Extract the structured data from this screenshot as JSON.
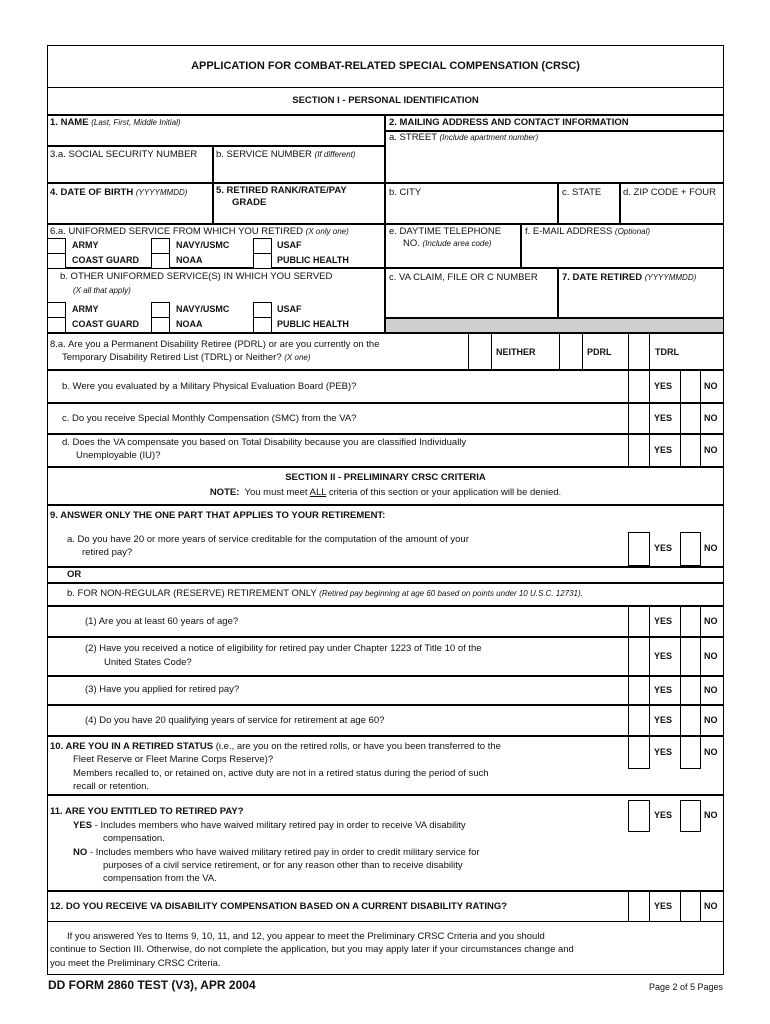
{
  "title": "APPLICATION FOR COMBAT-RELATED SPECIAL COMPENSATION (CRSC)",
  "section1": "SECTION I - PERSONAL IDENTIFICATION",
  "f1": {
    "num": "1.",
    "label": "NAME",
    "hint": "(Last, First, Middle Initial)"
  },
  "f2": {
    "label": "2.  MAILING ADDRESS AND CONTACT INFORMATION",
    "a": "a.  STREET",
    "a_hint": "(Include apartment number)",
    "b": "b.  CITY",
    "c": "c.  STATE",
    "d": "d.  ZIP CODE + FOUR",
    "e1": "e.  DAYTIME TELEPHONE",
    "e2": "NO.",
    "e_hint": "(Include area code)",
    "f": "f.  E-MAIL ADDRESS",
    "f_hint": "(Optional)",
    "vc": "c.  VA CLAIM, FILE OR C NUMBER"
  },
  "f3": {
    "a": "3.a. SOCIAL SECURITY NUMBER",
    "b": "b. SERVICE NUMBER",
    "b_hint": "(If different)"
  },
  "f4": {
    "label": "4.  DATE OF BIRTH",
    "hint": "(YYYYMMDD)"
  },
  "f5": {
    "label1": "5.  RETIRED RANK/RATE/PAY",
    "label2": "GRADE"
  },
  "f6": {
    "a": "6.a. UNIFORMED SERVICE FROM WHICH YOU RETIRED",
    "a_hint": "(X only one)",
    "b": "b. OTHER UNIFORMED SERVICE(S) IN WHICH YOU SERVED",
    "b_hint": "(X all that apply)",
    "services": [
      "ARMY",
      "NAVY/USMC",
      "USAF",
      "COAST GUARD",
      "NOAA",
      "PUBLIC HEALTH"
    ]
  },
  "f7": {
    "label": "7. DATE RETIRED",
    "hint": "(YYYYMMDD)"
  },
  "f8": {
    "a1": "8.a. Are you a Permanent Disability Retiree (PDRL) or are you currently on the",
    "a2": "Temporary Disability Retired List (TDRL) or Neither?",
    "a_hint": "(X one)",
    "options": [
      "NEITHER",
      "PDRL",
      "TDRL"
    ],
    "b": "b. Were you evaluated by a Military Physical Evaluation Board (PEB)?",
    "c": "c. Do you receive Special Monthly Compensation (SMC) from the VA?",
    "d1": "d. Does the VA compensate you based on Total Disability because you are classified Individually",
    "d2": "Unemployable (IU)?"
  },
  "yes": "YES",
  "no": "NO",
  "section2": {
    "title": "SECTION II - PRELIMINARY CRSC CRITERIA",
    "note_label": "NOTE:",
    "note_pre": "You must meet",
    "note_all": "ALL",
    "note_post": "criteria of this section or your application will be denied."
  },
  "f9": {
    "header": "9.  ANSWER ONLY THE ONE PART THAT APPLIES TO YOUR RETIREMENT:",
    "a1": "a.  Do you have 20 or more years of service creditable for the computation of the amount of your",
    "a2": "retired pay?",
    "or": "OR",
    "b": "b.  FOR NON-REGULAR (RESERVE) RETIREMENT ONLY",
    "b_hint": "(Retired pay beginning at age 60 based on points under 10 U.S.C. 12731).",
    "q1": "(1) Are you at least 60 years of age?",
    "q2a": "(2) Have you received a notice of eligibility for retired pay under Chapter 1223 of Title 10 of the",
    "q2b": "United States Code?",
    "q3": "(3) Have you applied for retired pay?",
    "q4": "(4) Do you have 20 qualifying years of service for retirement at age 60?"
  },
  "f10": {
    "bold": "10. ARE YOU IN A RETIRED STATUS",
    "rest": " (i.e., are you on the retired rolls, or have you been transferred to the",
    "l2": "Fleet Reserve or Fleet Marine Corps Reserve)?",
    "l3": "Members recalled to, or retained on, active duty are not in a retired status during the period of such",
    "l4": "recall or retention."
  },
  "f11": {
    "title": "11. ARE YOU ENTITLED TO RETIRED PAY?",
    "yes_label": "YES",
    "yes1": " - Includes members who have waived military retired pay in order to receive VA disability",
    "yes2": "compensation.",
    "no_label": "NO",
    "no1": " - Includes members who have waived military retired pay in order to credit military service for",
    "no2": "purposes of a civil service retirement, or for any reason other than to receive disability",
    "no3": "compensation from the VA."
  },
  "f12": "12. DO YOU RECEIVE VA DISABILITY COMPENSATION BASED ON A CURRENT DISABILITY RATING?",
  "closing": [
    "If you answered Yes to Items 9, 10, 11, and 12, you appear to meet the Preliminary CRSC Criteria and you should",
    "continue to Section III.  Otherwise, do not complete the application, but you may apply later if your circumstances change and",
    "you meet the Preliminary CRSC Criteria."
  ],
  "footer": {
    "form": "DD FORM 2860 TEST (V3), APR 2004",
    "page": "Page 2 of 5 Pages"
  }
}
